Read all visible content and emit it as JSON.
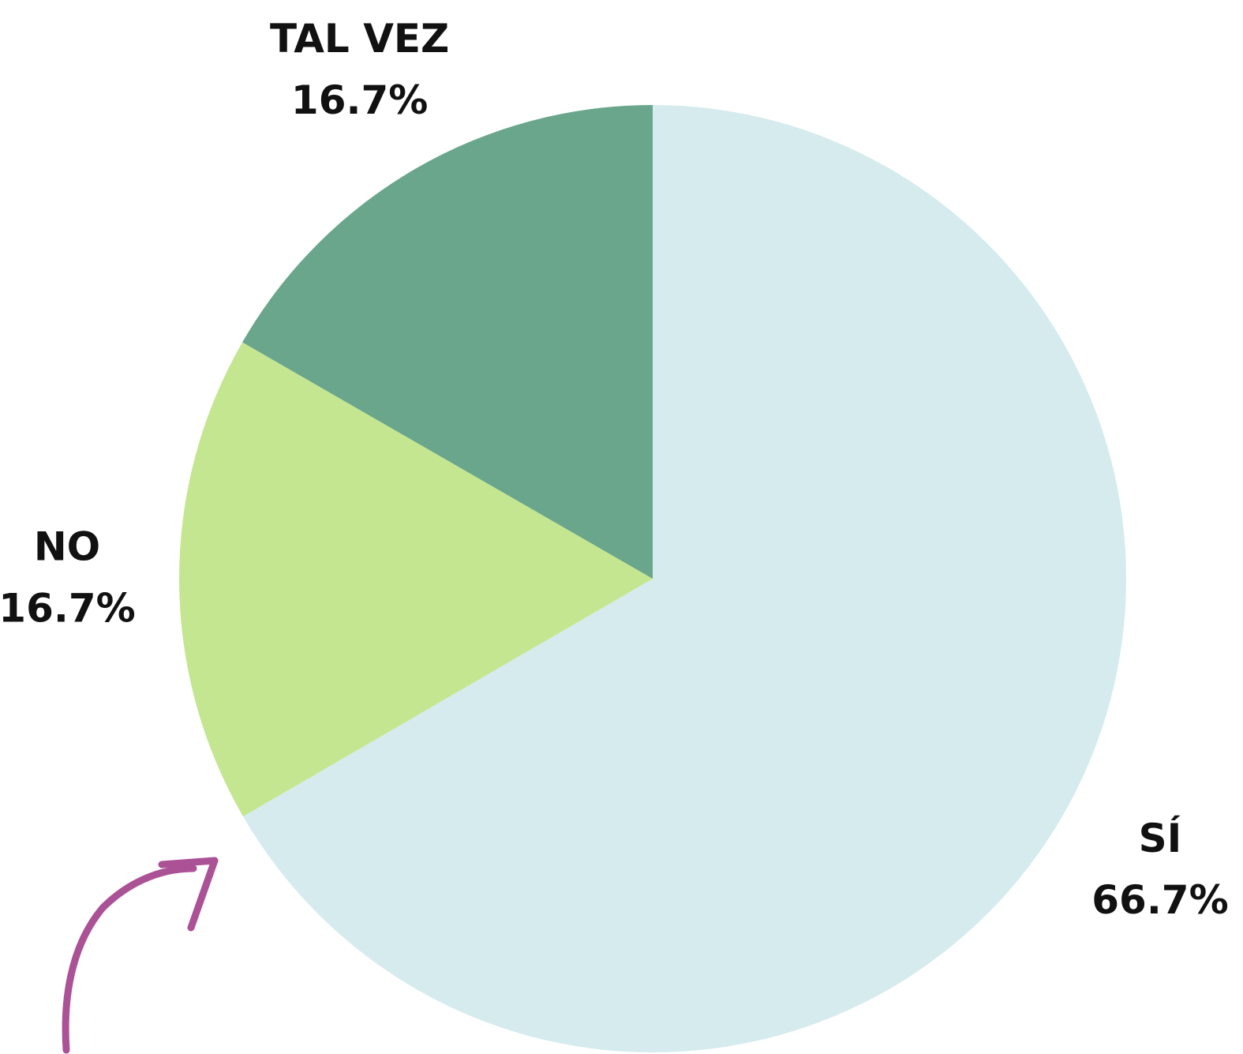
{
  "chart_data": {
    "type": "pie",
    "categories": [
      "SÍ",
      "NO",
      "TAL VEZ"
    ],
    "values": [
      66.7,
      16.7,
      16.7
    ],
    "value_labels": [
      "66.7%",
      "16.7%",
      "16.7%"
    ],
    "colors": [
      "#d5ebee",
      "#c5e690",
      "#69a68c"
    ]
  }
}
